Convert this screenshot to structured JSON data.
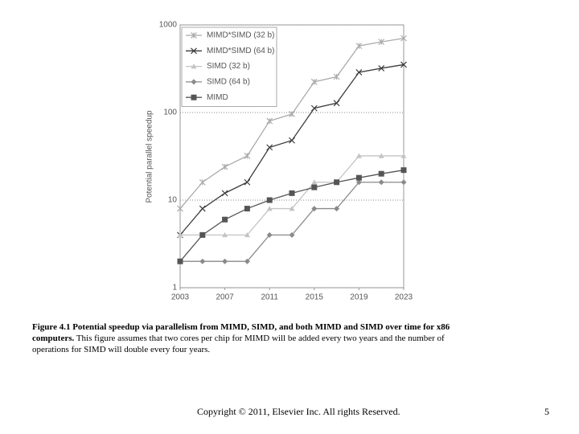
{
  "chart_data": {
    "type": "line",
    "ylabel": "Potential parallel speedup",
    "log_y": true,
    "grid": true,
    "x": [
      2003,
      2005,
      2007,
      2009,
      2011,
      2013,
      2015,
      2017,
      2019,
      2021,
      2023
    ],
    "xlim": [
      2003,
      2023
    ],
    "xticks": [
      2003,
      2007,
      2011,
      2015,
      2019,
      2023
    ],
    "ylim": [
      1,
      1000
    ],
    "yticks": [
      1,
      10,
      100,
      1000
    ],
    "series": [
      {
        "name": "MIMD*SIMD (32 b)",
        "color": "#ababab",
        "marker": "star",
        "values": [
          8,
          16,
          24,
          32,
          80,
          96,
          224,
          256,
          576,
          640,
          704
        ]
      },
      {
        "name": "MIMD*SIMD (64 b)",
        "color": "#3c3c3c",
        "marker": "x",
        "values": [
          4,
          8,
          12,
          16,
          40,
          48,
          112,
          128,
          288,
          320,
          352
        ]
      },
      {
        "name": "SIMD (32 b)",
        "color": "#c4c4c4",
        "marker": "triangle",
        "values": [
          4,
          4,
          4,
          4,
          8,
          8,
          16,
          16,
          32,
          32,
          32
        ]
      },
      {
        "name": "SIMD (64 b)",
        "color": "#8a8a8a",
        "marker": "diamond",
        "values": [
          2,
          2,
          2,
          2,
          4,
          4,
          8,
          8,
          16,
          16,
          16
        ]
      },
      {
        "name": "MIMD",
        "color": "#555555",
        "marker": "square",
        "values": [
          2,
          4,
          6,
          8,
          10,
          12,
          14,
          16,
          18,
          20,
          22
        ]
      }
    ]
  },
  "caption": {
    "bold": "Figure 4.1 Potential speedup via parallelism from MIMD, SIMD, and both MIMD and SIMD over time for x86 computers.",
    "text": "This figure assumes that two cores per chip for MIMD will be added every two years and the number of operations for SIMD will double every four years."
  },
  "footer": {
    "copyright": "Copyright © 2011, Elsevier Inc. All rights Reserved.",
    "page": "5"
  }
}
